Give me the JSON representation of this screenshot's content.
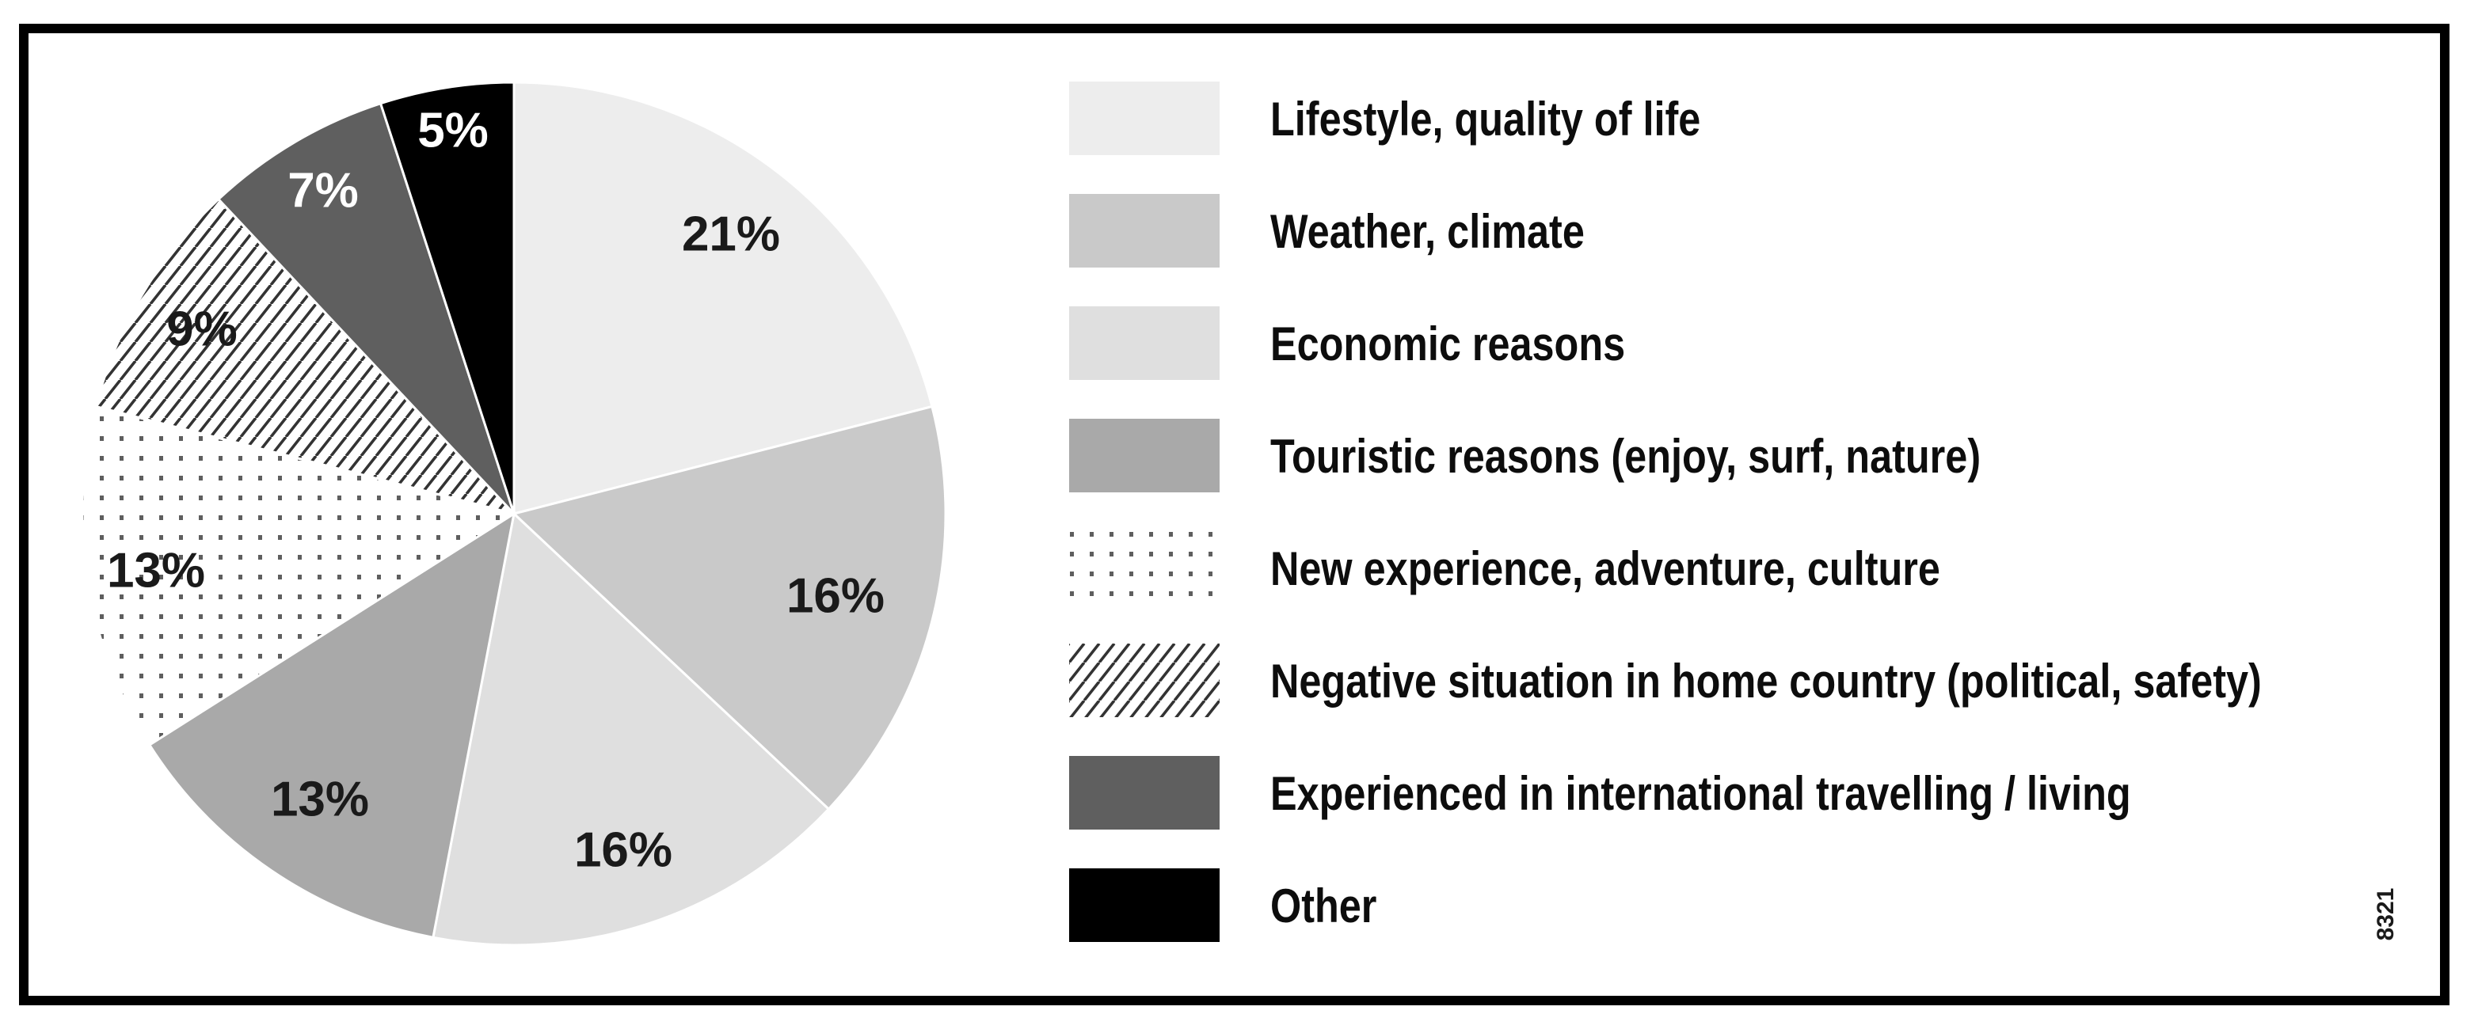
{
  "chart_data": {
    "type": "pie",
    "title": "",
    "start_angle_deg": 0,
    "direction": "clockwise",
    "legend_position": "right",
    "total": 100,
    "slices": [
      {
        "label": "Lifestyle, quality of life",
        "value": 21,
        "percent_label": "21%",
        "fill": "#ededed",
        "label_color": "#1a1a1a"
      },
      {
        "label": "Weather, climate",
        "value": 16,
        "percent_label": "16%",
        "fill": "#c9c9c9",
        "label_color": "#1a1a1a"
      },
      {
        "label": "Economic reasons",
        "value": 16,
        "percent_label": "16%",
        "fill": "#dfdfdf",
        "label_color": "#1a1a1a"
      },
      {
        "label": "Touristic reasons (enjoy, surf, nature)",
        "value": 13,
        "percent_label": "13%",
        "fill": "#a9a9a9",
        "label_color": "#1a1a1a"
      },
      {
        "label": "New experience, adventure, culture",
        "value": 13,
        "percent_label": "13%",
        "fill": "pattern:dots",
        "label_color": "#1a1a1a"
      },
      {
        "label": "Negative situation in home country (political, safety)",
        "value": 9,
        "percent_label": "9%",
        "fill": "pattern:hatch",
        "label_color": "#1a1a1a"
      },
      {
        "label": "Experienced in international travelling / living",
        "value": 7,
        "percent_label": "7%",
        "fill": "#5f5f5f",
        "label_color": "#ffffff"
      },
      {
        "label": "Other",
        "value": 5,
        "percent_label": "5%",
        "fill": "#000000",
        "label_color": "#ffffff"
      }
    ]
  },
  "footnote": "8321",
  "colors": {
    "frame": "#000000",
    "background": "#ffffff",
    "slice_separator": "#ffffff",
    "pattern_dot": "#5e5e5e",
    "pattern_hatch_line": "#333333"
  }
}
